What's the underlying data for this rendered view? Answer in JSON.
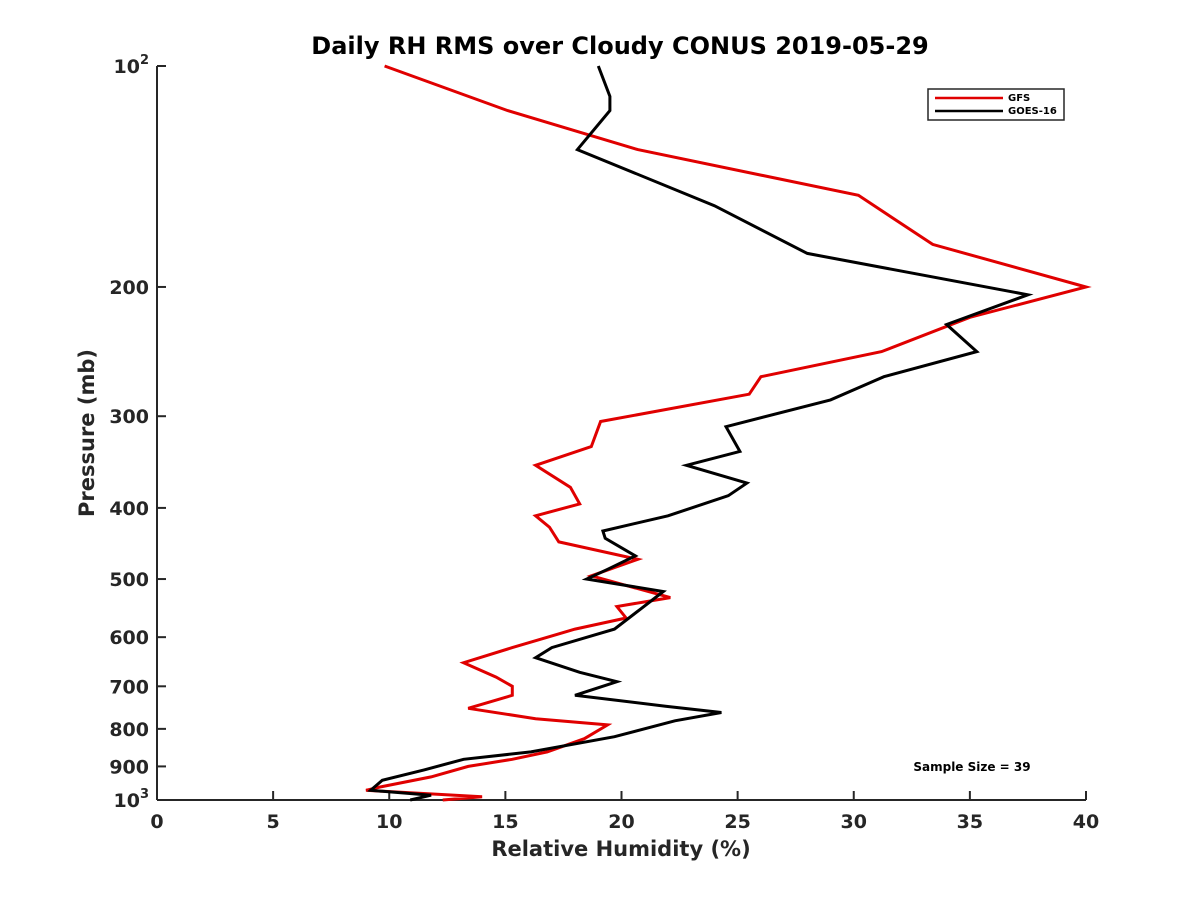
{
  "chart_data": {
    "type": "line",
    "title": "Daily RH RMS over Cloudy CONUS 2019-05-29",
    "xlabel": "Relative Humidity (%)",
    "ylabel": "Pressure (mb)",
    "xlim": [
      0,
      40
    ],
    "ylim": [
      100,
      1000
    ],
    "y_scale": "log",
    "y_reversed": true,
    "grid": false,
    "legend_position": "top-right",
    "x_ticks": [
      "0",
      "5",
      "10",
      "15",
      "20",
      "25",
      "30",
      "35",
      "40"
    ],
    "x_tick_values": [
      0,
      5,
      10,
      15,
      20,
      25,
      30,
      35,
      40
    ],
    "y_ticks": [
      {
        "value": 100,
        "base": "10",
        "exp": "2"
      },
      {
        "value": 200,
        "label": "200"
      },
      {
        "value": 300,
        "label": "300"
      },
      {
        "value": 400,
        "label": "400"
      },
      {
        "value": 500,
        "label": "500"
      },
      {
        "value": 600,
        "label": "600"
      },
      {
        "value": 700,
        "label": "700"
      },
      {
        "value": 800,
        "label": "800"
      },
      {
        "value": 900,
        "label": "900"
      },
      {
        "value": 1000,
        "base": "10",
        "exp": "3"
      }
    ],
    "series": [
      {
        "name": "GFS",
        "color": "#e00000",
        "x": [
          9.8,
          15.1,
          20.7,
          30.2,
          33.4,
          40.0,
          35.0,
          31.2,
          26.0,
          25.5,
          19.1,
          18.7,
          16.3,
          17.8,
          18.2,
          16.3,
          16.9,
          17.3,
          20.7,
          18.7,
          22.1,
          19.8,
          20.2,
          18.0,
          15.3,
          13.2,
          14.6,
          15.3,
          15.3,
          13.4,
          16.3,
          19.4,
          18.4,
          16.8,
          15.3,
          13.4,
          11.8,
          9.6,
          9.0,
          14.0,
          12.3
        ],
        "y": [
          100,
          115,
          130,
          150,
          175,
          200,
          220,
          245,
          265,
          280,
          305,
          330,
          350,
          375,
          395,
          410,
          425,
          445,
          470,
          495,
          530,
          545,
          565,
          585,
          620,
          650,
          680,
          700,
          720,
          750,
          775,
          790,
          825,
          860,
          880,
          900,
          930,
          960,
          970,
          990,
          1000
        ]
      },
      {
        "name": "GOES-16",
        "color": "#000000",
        "x": [
          19.0,
          19.5,
          19.5,
          18.1,
          24.0,
          28.0,
          37.5,
          34.0,
          35.3,
          31.3,
          29.0,
          24.5,
          25.1,
          22.8,
          25.4,
          24.6,
          22.0,
          19.2,
          19.3,
          20.6,
          19.4,
          18.5,
          21.8,
          20.8,
          19.7,
          17.0,
          16.3,
          18.2,
          19.8,
          18.0,
          21.9,
          24.3,
          22.3,
          19.7,
          16.1,
          13.2,
          11.5,
          9.7,
          9.2,
          11.8,
          10.9
        ],
        "y": [
          100,
          110,
          115,
          130,
          155,
          180,
          205,
          225,
          245,
          265,
          285,
          310,
          335,
          350,
          370,
          385,
          410,
          430,
          440,
          465,
          485,
          500,
          520,
          550,
          585,
          620,
          640,
          670,
          690,
          720,
          745,
          760,
          780,
          820,
          860,
          880,
          910,
          940,
          970,
          985,
          1000
        ]
      }
    ],
    "annotation": "Sample Size = 39"
  }
}
